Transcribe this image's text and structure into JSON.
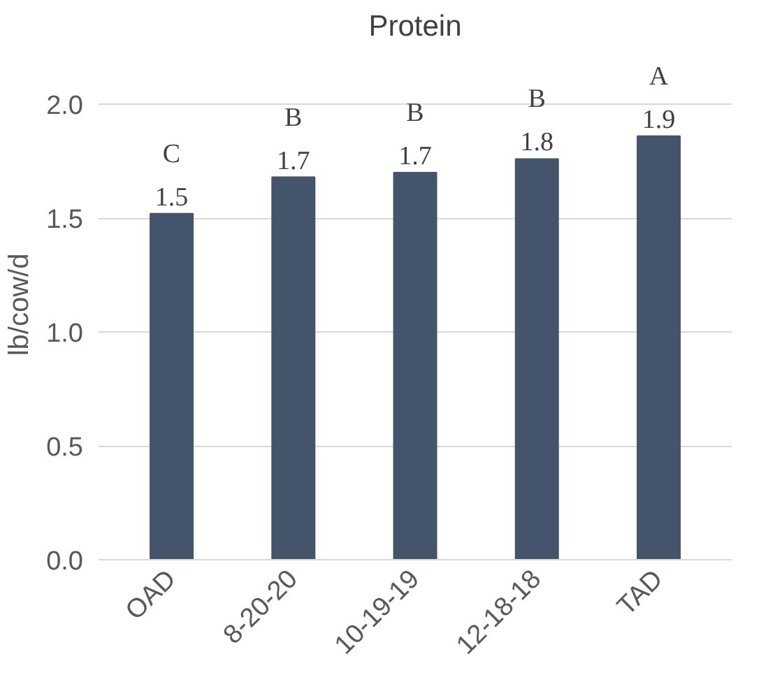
{
  "chart_data": {
    "type": "bar",
    "title": "Protein",
    "ylabel": "lb/cow/d",
    "categories": [
      "OAD",
      "8-20-20",
      "10-19-19",
      "12-18-18",
      "TAD"
    ],
    "values": [
      1.52,
      1.68,
      1.7,
      1.76,
      1.86
    ],
    "value_labels": [
      "1.5",
      "1.7",
      "1.7",
      "1.8",
      "1.9"
    ],
    "color": "#44546a",
    "ylim": [
      0,
      2.0
    ],
    "yticks": [
      {
        "value": 0,
        "label": "0.0"
      },
      {
        "value": 0.5,
        "label": "0.5"
      },
      {
        "value": 1.0,
        "label": "1.0"
      },
      {
        "value": 1.5,
        "label": "1.5"
      },
      {
        "value": 2.0,
        "label": "2.0"
      }
    ],
    "grid": "y",
    "annotations": [
      {
        "text": "C",
        "x": "OAD",
        "y": 1.52
      },
      {
        "text": "B",
        "x": "8-20-20",
        "y": 1.68
      },
      {
        "text": "B",
        "x": "10-19-19",
        "y": 1.7
      },
      {
        "text": "B",
        "x": "12-18-18",
        "y": 1.76
      },
      {
        "text": "A",
        "x": "TAD",
        "y": 1.86
      }
    ]
  }
}
